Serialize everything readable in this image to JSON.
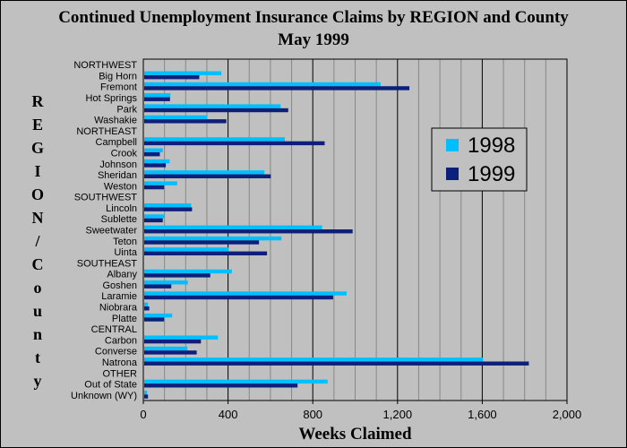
{
  "chart_data": {
    "type": "bar",
    "orientation": "horizontal",
    "title": "Continued Unemployment Insurance Claims by REGION and County",
    "subtitle": "May 1999",
    "ylabel": "REGION/County",
    "xlabel": "Weeks Claimed",
    "xlim": [
      0,
      2000
    ],
    "xticks": [
      "0",
      "400",
      "800",
      "1,200",
      "1,600",
      "2,000"
    ],
    "grid": true,
    "legend_position": "right",
    "categories": [
      "NORTHWEST",
      "Big Horn",
      "Fremont",
      "Hot Springs",
      "Park",
      "Washakie",
      "NORTHEAST",
      "Campbell",
      "Crook",
      "Johnson",
      "Sheridan",
      "Weston",
      "SOUTHWEST",
      "Lincoln",
      "Sublette",
      "Sweetwater",
      "Teton",
      "Uinta",
      "SOUTHEAST",
      "Albany",
      "Goshen",
      "Laramie",
      "Niobrara",
      "Platte",
      "CENTRAL",
      "Carbon",
      "Converse",
      "Natrona",
      "OTHER",
      "Out of State",
      "Unknown (WY)"
    ],
    "series": [
      {
        "name": "1998",
        "color": "#00bfff",
        "values": [
          0,
          368,
          1120,
          128,
          648,
          302,
          0,
          668,
          92,
          124,
          572,
          160,
          0,
          226,
          100,
          844,
          652,
          402,
          0,
          418,
          210,
          960,
          22,
          136,
          0,
          352,
          208,
          1604,
          0,
          870,
          18
        ]
      },
      {
        "name": "1999",
        "color": "#0c1f7a",
        "values": [
          0,
          264,
          1256,
          126,
          684,
          392,
          0,
          856,
          78,
          106,
          602,
          98,
          0,
          230,
          92,
          988,
          546,
          584,
          0,
          316,
          132,
          896,
          28,
          98,
          0,
          272,
          252,
          1820,
          0,
          728,
          22
        ]
      }
    ]
  },
  "colors": {
    "background": "#c0c0c0",
    "plot_background": "#c0c0c0",
    "gridline": "#000000"
  }
}
